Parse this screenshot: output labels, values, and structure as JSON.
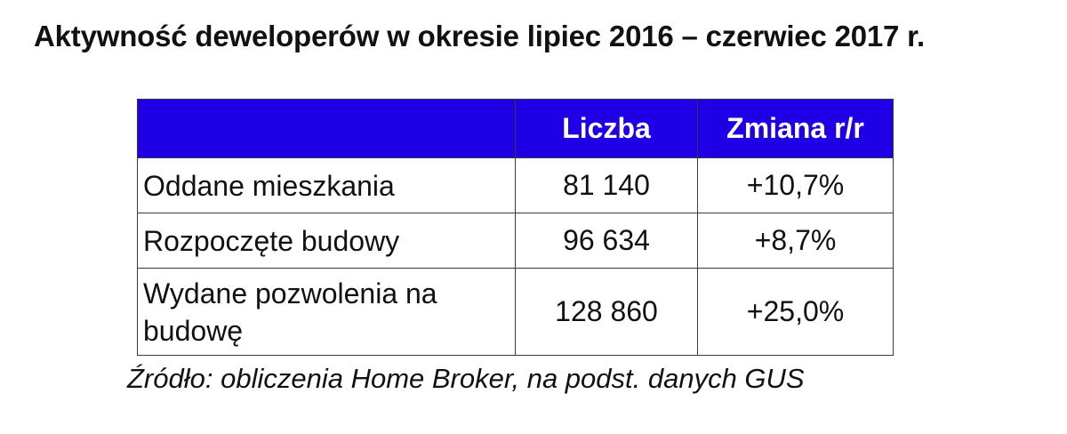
{
  "title": "Aktywność deweloperów w okresie lipiec 2016 – czerwiec 2017 r.",
  "source": "Źródło: obliczenia Home Broker, na podst. danych GUS",
  "chart_data": {
    "type": "table",
    "columns": [
      "",
      "Liczba",
      "Zmiana r/r"
    ],
    "rows": [
      {
        "label": "Oddane mieszkania",
        "liczba": "81 140",
        "zmiana": "+10,7%"
      },
      {
        "label": "Rozpoczęte budowy",
        "liczba": "96 634",
        "zmiana": "+8,7%"
      },
      {
        "label": "Wydane pozwolenia na budowę",
        "liczba": "128 860",
        "zmiana": "+25,0%"
      }
    ],
    "colors": {
      "header_bg": "#1f00e6",
      "header_text": "#ffffff"
    }
  }
}
